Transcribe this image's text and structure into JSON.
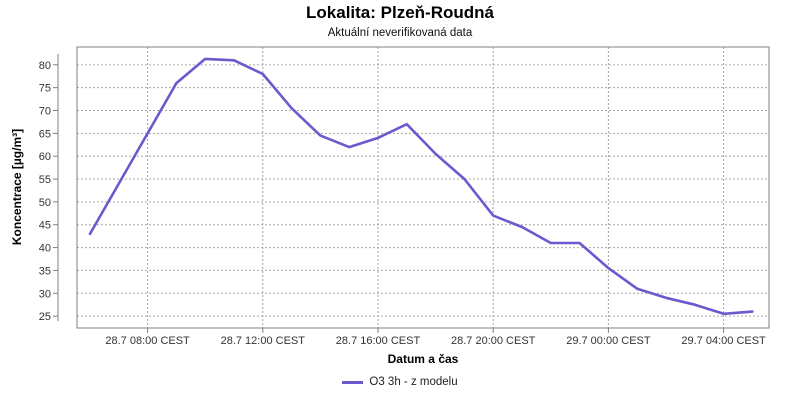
{
  "header": {
    "title": "Lokalita: Plzeň-Roudná",
    "subtitle": "Aktuální neverifikovaná data"
  },
  "chart_data": {
    "type": "line",
    "title": "Lokalita: Plzeň-Roudná",
    "subtitle": "Aktuální neverifikovaná data",
    "xlabel": "Datum a čas",
    "ylabel": "Koncentrace [µg/m³]",
    "x": [
      "28.7 06:00",
      "28.7 07:00",
      "28.7 08:00",
      "28.7 09:00",
      "28.7 10:00",
      "28.7 11:00",
      "28.7 12:00",
      "28.7 13:00",
      "28.7 14:00",
      "28.7 15:00",
      "28.7 16:00",
      "28.7 17:00",
      "28.7 18:00",
      "28.7 19:00",
      "28.7 20:00",
      "28.7 21:00",
      "28.7 22:00",
      "28.7 23:00",
      "29.7 00:00",
      "29.7 01:00",
      "29.7 02:00",
      "29.7 03:00",
      "29.7 04:00",
      "29.7 05:00"
    ],
    "series": [
      {
        "name": "O3 3h - z modelu",
        "color": "#6a5acd",
        "values": [
          43,
          54,
          65,
          76,
          81.3,
          81,
          78,
          70.5,
          64.5,
          62,
          64,
          67,
          60.5,
          55,
          47,
          44.5,
          41,
          41,
          35.5,
          31,
          29,
          27.5,
          25.5,
          26
        ]
      }
    ],
    "x_ticks": [
      {
        "index": 2,
        "label": "28.7 08:00 CEST"
      },
      {
        "index": 6,
        "label": "28.7 12:00 CEST"
      },
      {
        "index": 10,
        "label": "28.7 16:00 CEST"
      },
      {
        "index": 14,
        "label": "28.7 20:00 CEST"
      },
      {
        "index": 18,
        "label": "29.7 00:00 CEST"
      },
      {
        "index": 22,
        "label": "29.7 04:00 CEST"
      }
    ],
    "yticks": [
      25,
      30,
      35,
      40,
      45,
      50,
      55,
      60,
      65,
      70,
      75,
      80
    ],
    "ylim": [
      22.4,
      83.9
    ],
    "grid": "dashed, both axes",
    "legend_position": "bottom-center"
  }
}
